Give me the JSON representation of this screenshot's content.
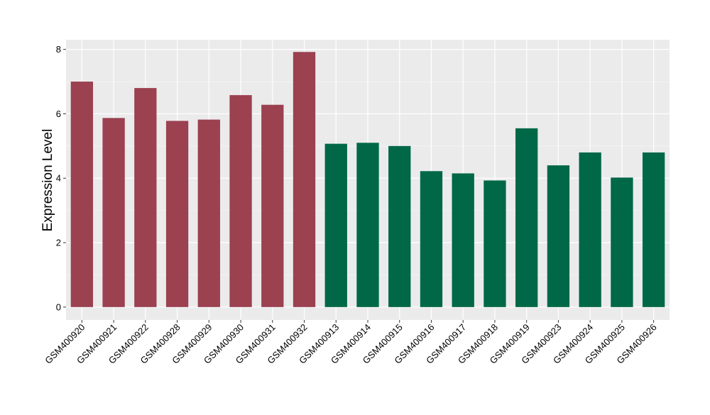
{
  "chart_data": {
    "type": "bar",
    "title": "",
    "xlabel": "",
    "ylabel": "Expression Level",
    "ylim": [
      -0.4,
      8.3
    ],
    "yticks": [
      0,
      2,
      4,
      6,
      8
    ],
    "grid": true,
    "legend": "none",
    "categories": [
      "GSM400920",
      "GSM400921",
      "GSM400922",
      "GSM400928",
      "GSM400929",
      "GSM400930",
      "GSM400931",
      "GSM400932",
      "GSM400913",
      "GSM400914",
      "GSM400915",
      "GSM400916",
      "GSM400917",
      "GSM400918",
      "GSM400919",
      "GSM400923",
      "GSM400924",
      "GSM400925",
      "GSM400926"
    ],
    "values": [
      7.0,
      5.87,
      6.8,
      5.78,
      5.82,
      6.58,
      6.28,
      7.92,
      5.07,
      5.1,
      5.0,
      4.22,
      4.15,
      3.93,
      5.55,
      4.4,
      4.8,
      4.02,
      4.8
    ],
    "bar_colors": [
      "#9b4150",
      "#9b4150",
      "#9b4150",
      "#9b4150",
      "#9b4150",
      "#9b4150",
      "#9b4150",
      "#9b4150",
      "#006847",
      "#006847",
      "#006847",
      "#006847",
      "#006847",
      "#006847",
      "#006847",
      "#006847",
      "#006847",
      "#006847",
      "#006847"
    ],
    "colors": {
      "panel_background": "#ebebeb",
      "grid_major": "#ffffff",
      "axis_text": "#000000"
    }
  }
}
